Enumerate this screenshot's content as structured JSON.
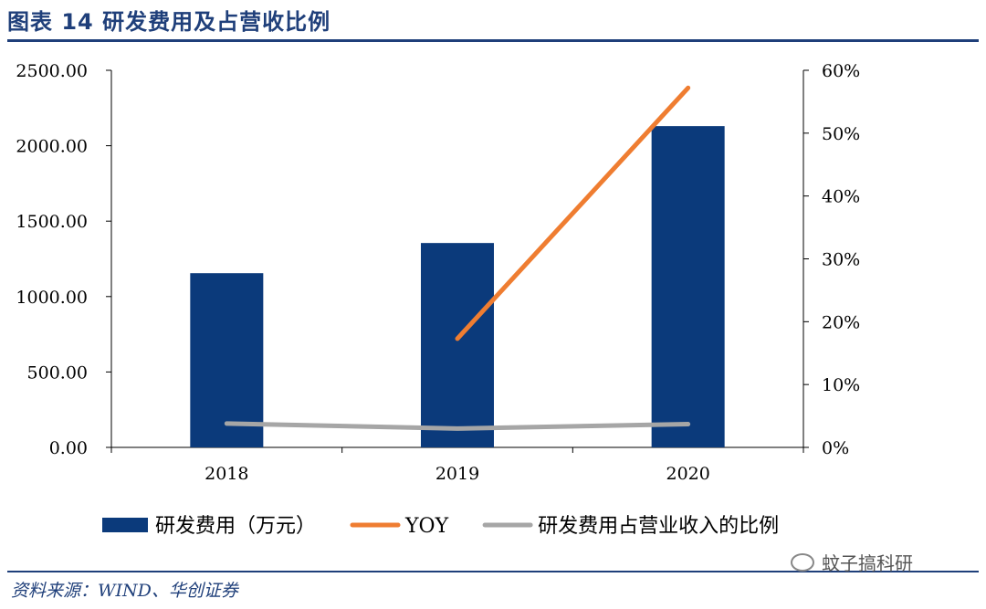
{
  "header": {
    "title": "图表 14 研发费用及占营收比例"
  },
  "footer": {
    "source": "资料来源：WIND、华创证券",
    "watermark": "蚊子搞科研"
  },
  "chart_data": {
    "type": "bar",
    "categories": [
      "2018",
      "2019",
      "2020"
    ],
    "series": [
      {
        "name": "研发费用（万元）",
        "kind": "bar",
        "axis": "left",
        "color": "#0b3a7b",
        "values": [
          1155,
          1355,
          2130
        ]
      },
      {
        "name": "YOY",
        "kind": "line",
        "axis": "right",
        "color": "#ef7d31",
        "values": [
          null,
          17.3,
          57.2
        ]
      },
      {
        "name": "研发费用占营业收入的比例",
        "kind": "line",
        "axis": "right",
        "color": "#a6a6a6",
        "values": [
          3.8,
          3.0,
          3.7
        ]
      }
    ],
    "left_axis": {
      "min": 0,
      "max": 2500,
      "ticks": [
        "0.00",
        "500.00",
        "1000.00",
        "1500.00",
        "2000.00",
        "2500.00"
      ]
    },
    "right_axis": {
      "min": 0,
      "max": 60,
      "ticks": [
        "0%",
        "10%",
        "20%",
        "30%",
        "40%",
        "50%",
        "60%"
      ]
    },
    "legend_position": "bottom",
    "grid": false
  }
}
